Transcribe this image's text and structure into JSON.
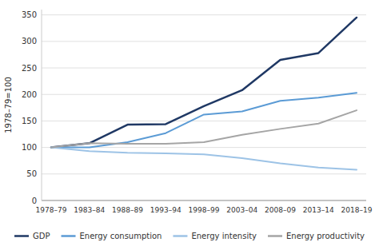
{
  "chart_data": {
    "type": "line",
    "categories": [
      "1978–79",
      "1983–84",
      "1988–89",
      "1993–94",
      "1998–99",
      "2003–04",
      "2008–09",
      "2013–14",
      "2018–19"
    ],
    "series": [
      {
        "name": "GDP",
        "color": "#1f3864",
        "values": [
          100,
          108,
          143,
          144,
          178,
          208,
          265,
          278,
          345
        ]
      },
      {
        "name": "Energy consumption",
        "color": "#5b9bd5",
        "values": [
          100,
          100,
          110,
          127,
          162,
          168,
          188,
          194,
          203
        ]
      },
      {
        "name": "Energy intensity",
        "color": "#9dc3e6",
        "values": [
          100,
          93,
          90,
          89,
          87,
          80,
          70,
          62,
          58
        ]
      },
      {
        "name": "Energy productivity",
        "color": "#a5a5a5",
        "values": [
          100,
          108,
          107,
          107,
          110,
          124,
          135,
          145,
          170
        ]
      }
    ],
    "y_label": "1978–79=100",
    "ylim": [
      0,
      360
    ],
    "yticks": [
      0,
      50,
      100,
      150,
      200,
      250,
      300,
      350
    ],
    "grid": true,
    "legend": "bottom"
  }
}
